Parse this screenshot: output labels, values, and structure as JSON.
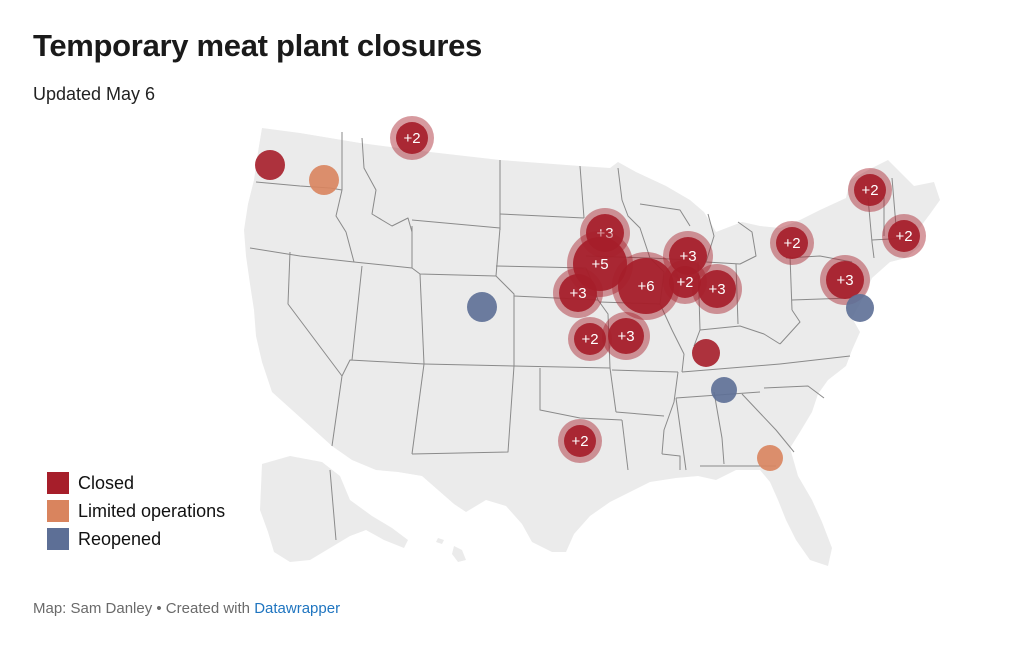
{
  "header": {
    "title": "Temporary meat plant closures",
    "subtitle": "Updated May 6"
  },
  "legend": {
    "items": [
      {
        "label": "Closed",
        "color": "#a61e2a"
      },
      {
        "label": "Limited operations",
        "color": "#d9845e"
      },
      {
        "label": "Reopened",
        "color": "#5d6f96"
      }
    ]
  },
  "footer": {
    "prefix": "Map: Sam Danley • Created with ",
    "link": "Datawrapper"
  },
  "colors": {
    "land": "#ebebeb",
    "border": "#8a8a8a",
    "closed": "#a61e2a",
    "limited": "#d9845e",
    "reopened": "#5d6f96"
  },
  "markers": [
    {
      "status": "closed",
      "count": "+2",
      "location": "Northern Montana"
    },
    {
      "status": "closed",
      "count": "",
      "location": "Western Washington"
    },
    {
      "status": "limited",
      "count": "",
      "location": "Eastern Washington"
    },
    {
      "status": "reopened",
      "count": "",
      "location": "Colorado"
    },
    {
      "status": "closed",
      "count": "+3",
      "location": "Minnesota"
    },
    {
      "status": "closed",
      "count": "+5",
      "location": "Southern Minnesota / Iowa"
    },
    {
      "status": "closed",
      "count": "+6",
      "location": "Iowa"
    },
    {
      "status": "closed",
      "count": "+3",
      "location": "Nebraska"
    },
    {
      "status": "closed",
      "count": "+2",
      "location": "Kansas"
    },
    {
      "status": "closed",
      "count": "+3",
      "location": "Missouri"
    },
    {
      "status": "closed",
      "count": "+3",
      "location": "Wisconsin"
    },
    {
      "status": "closed",
      "count": "+2",
      "location": "Illinois"
    },
    {
      "status": "closed",
      "count": "+3",
      "location": "Indiana"
    },
    {
      "status": "closed",
      "count": "",
      "location": "Kentucky"
    },
    {
      "status": "reopened",
      "count": "",
      "location": "Tennessee"
    },
    {
      "status": "closed",
      "count": "+2",
      "location": "Texas"
    },
    {
      "status": "limited",
      "count": "",
      "location": "Georgia"
    },
    {
      "status": "closed",
      "count": "+2",
      "location": "Western New York"
    },
    {
      "status": "closed",
      "count": "+2",
      "location": "Vermont / New Hampshire"
    },
    {
      "status": "closed",
      "count": "+2",
      "location": "Massachusetts"
    },
    {
      "status": "closed",
      "count": "+3",
      "location": "Pennsylvania"
    },
    {
      "status": "reopened",
      "count": "",
      "location": "Delaware"
    }
  ]
}
